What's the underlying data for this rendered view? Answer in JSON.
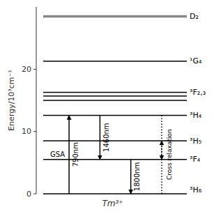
{
  "chart_data": {
    "type": "energy_levels",
    "ylabel": "Energy/10³cm⁻¹",
    "xlabel": "Tm³⁺",
    "ylim": [
      0,
      30
    ],
    "yticks": [
      0,
      10,
      20
    ],
    "levels": {
      "values": [
        0.0,
        5.5,
        8.5,
        12.6,
        15.0,
        15.7,
        16.3,
        21.3,
        28.5
      ],
      "labels": [
        "³H₆",
        "³F₄",
        "³H₅",
        "³H₄",
        null,
        null,
        "³F₂,₃",
        "¹G₄",
        "D₂"
      ],
      "colors": [
        "#000000",
        "#000000",
        "#000000",
        "#000000",
        "#000000",
        "#000000",
        "#000000",
        "#000000",
        "#888888"
      ]
    },
    "transitions": [
      {
        "caption": "GSA",
        "label": "790nm",
        "line_style": "solid",
        "arrows": [
          {
            "from": 0.0,
            "to": 12.6
          }
        ]
      },
      {
        "label": "1460nm",
        "line_style": "solid",
        "arrows": [
          {
            "from": 12.6,
            "to": 5.5
          }
        ]
      },
      {
        "label": "1800nm",
        "line_style": "solid",
        "arrows": [
          {
            "from": 5.5,
            "to": 0.0
          }
        ]
      },
      {
        "caption": "Cross relaxation",
        "line_style": "dotted",
        "arrows": [
          {
            "from": 12.6,
            "to": 5.5
          },
          {
            "from": 0.0,
            "to": 8.5
          }
        ]
      }
    ]
  }
}
